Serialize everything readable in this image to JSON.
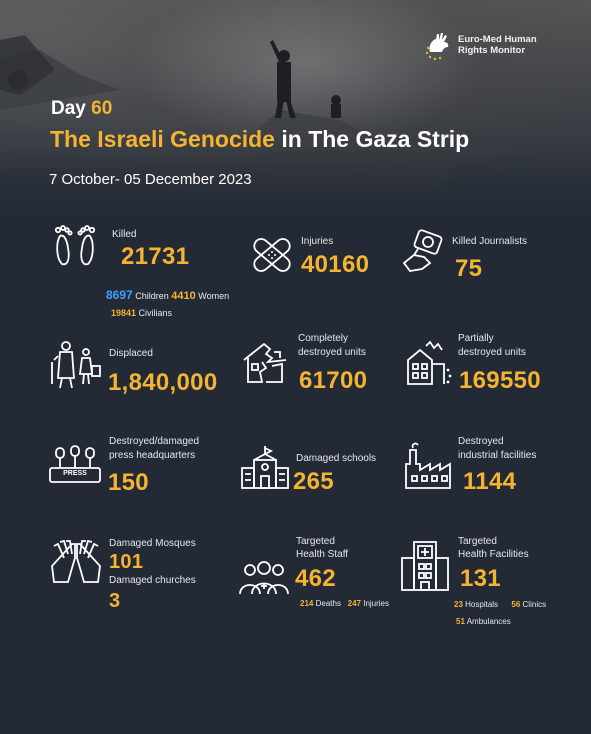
{
  "header": {
    "org_line1": "Euro-Med Human",
    "org_line2": "Rights Monitor",
    "day_label": "Day",
    "day_number": "60",
    "title_highlight": "The Israeli Genocide",
    "title_rest": "in The Gaza Strip",
    "date_range": "7 October- 05 December 2023"
  },
  "stats": {
    "killed": {
      "label": "Killed",
      "value": "21731",
      "children_value": "8697",
      "children_label": "Children",
      "women_value": "4410",
      "women_label": "Women",
      "civilians_value": "19841",
      "civilians_label": "Civilians"
    },
    "injuries": {
      "label": "Injuries",
      "value": "40160"
    },
    "journalists": {
      "label": "Killed Journalists",
      "value": "75"
    },
    "displaced": {
      "label": "Displaced",
      "value": "1,840,000"
    },
    "destroyed_units": {
      "label_line1": "Completely",
      "label_line2": "destroyed units",
      "value": "61700"
    },
    "partial_units": {
      "label_line1": "Partially",
      "label_line2": "destroyed units",
      "value": "169550"
    },
    "press": {
      "label_line1": "Destroyed/damaged",
      "label_line2": "press headquarters",
      "value": "150",
      "sign": "PRESS"
    },
    "schools": {
      "label": "Damaged schools",
      "value": "265"
    },
    "industrial": {
      "label_line1": "Destroyed",
      "label_line2": "industrial facilities",
      "value": "1144"
    },
    "mosques": {
      "label": "Damaged Mosques",
      "value": "101",
      "churches_label": "Damaged churches",
      "churches_value": "3"
    },
    "health_staff": {
      "label_line1": "Targeted",
      "label_line2": "Health Staff",
      "value": "462",
      "deaths_value": "214",
      "deaths_label": "Deaths",
      "injuries_value": "247",
      "injuries_label": "Injuries"
    },
    "health_facilities": {
      "label_line1": "Targeted",
      "label_line2": "Health Facilities",
      "value": "131",
      "hospitals_value": "23",
      "hospitals_label": "Hospitals",
      "clinics_value": "56",
      "clinics_label": "Clinics",
      "ambulances_value": "51",
      "ambulances_label": "Ambulances"
    }
  },
  "colors": {
    "background": "#232a35",
    "accent": "#f4b430",
    "highlight_blue": "#3ea0ff",
    "text": "#e6e8ec"
  }
}
